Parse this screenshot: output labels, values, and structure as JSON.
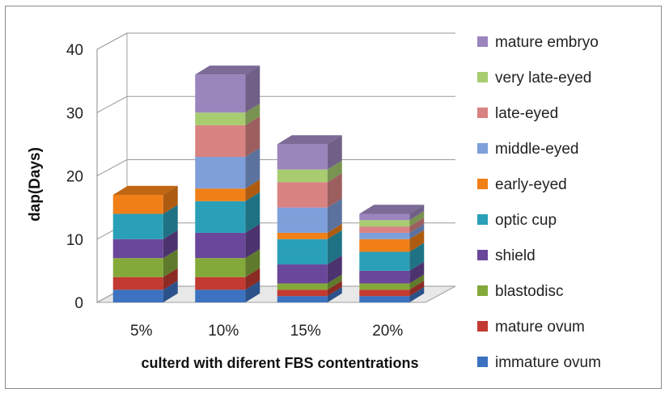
{
  "chart_data": {
    "type": "bar",
    "stacked": true,
    "three_d": true,
    "categories": [
      "5%",
      "10%",
      "15%",
      "20%"
    ],
    "xlabel": "culterd with diferent FBS contentrations",
    "ylabel": "dap(Days)",
    "ylim": [
      0,
      40
    ],
    "yticks": [
      "0",
      "10",
      "20",
      "30",
      "40"
    ],
    "grid": true,
    "legend_position": "right",
    "series": [
      {
        "name": "immature ovum",
        "color": "#3c72c0",
        "values": [
          2,
          2,
          1,
          1
        ]
      },
      {
        "name": "mature ovum",
        "color": "#c23a32",
        "values": [
          2,
          2,
          1,
          1
        ]
      },
      {
        "name": "blastodisc",
        "color": "#84a93a",
        "values": [
          3,
          3,
          1,
          1
        ]
      },
      {
        "name": "shield",
        "color": "#6a479a",
        "values": [
          3,
          4,
          3,
          2
        ]
      },
      {
        "name": "optic cup",
        "color": "#2a9fb8",
        "values": [
          4,
          5,
          4,
          3
        ]
      },
      {
        "name": "early-eyed",
        "color": "#f07f18",
        "values": [
          3,
          2,
          1,
          2
        ]
      },
      {
        "name": "middle-eyed",
        "color": "#7f9fdb",
        "values": [
          0,
          5,
          4,
          1
        ]
      },
      {
        "name": "late-eyed",
        "color": "#d98282",
        "values": [
          0,
          5,
          4,
          1
        ]
      },
      {
        "name": "very late-eyed",
        "color": "#a8cc70",
        "values": [
          0,
          2,
          2,
          1
        ]
      },
      {
        "name": "mature embryo",
        "color": "#9b85bd",
        "values": [
          0,
          6,
          4,
          1
        ]
      }
    ]
  }
}
